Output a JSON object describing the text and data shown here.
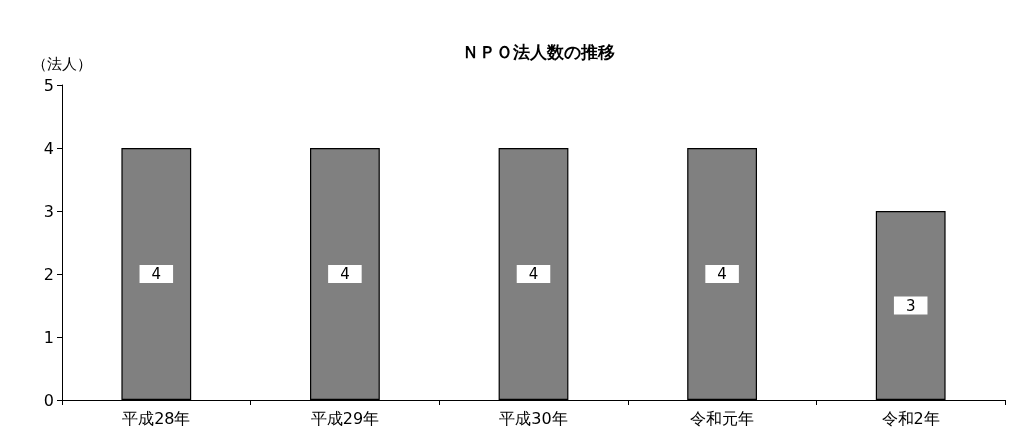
{
  "chart_data": {
    "type": "bar",
    "title": "ＮＰＯ法人数の推移",
    "ylabel": "（法人）",
    "categories": [
      "平成28年",
      "平成29年",
      "平成30年",
      "令和元年",
      "令和2年"
    ],
    "values": [
      4,
      4,
      4,
      4,
      3
    ],
    "color": "#808080",
    "ylim": [
      0,
      5
    ],
    "yticks": [
      0,
      1,
      2,
      3,
      4,
      5
    ],
    "grid": false,
    "data_labels": true
  }
}
